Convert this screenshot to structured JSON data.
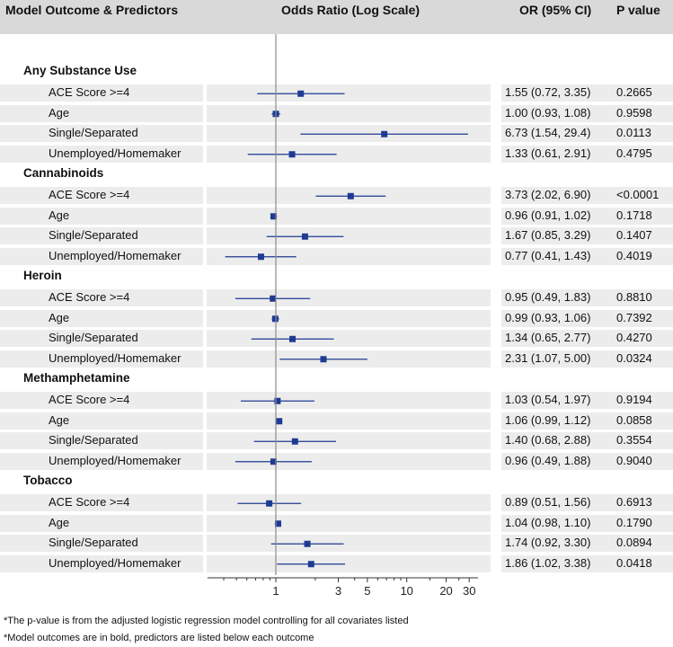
{
  "header": {
    "col1": "Model Outcome & Predictors",
    "col2": "Odds Ratio (Log Scale)",
    "col3": "OR (95% CI)",
    "col4": "P value"
  },
  "chart_data": {
    "type": "forest",
    "x_scale": "log",
    "xlim": [
      0.3,
      35
    ],
    "reference_line": 1,
    "x_ticks": [
      1,
      3,
      5,
      10,
      20,
      30
    ],
    "x_tick_labels": [
      "1",
      "3",
      "5",
      "10",
      "20",
      "30"
    ],
    "x_minor_ticks": [
      0.4,
      0.5,
      0.6,
      0.7,
      0.8,
      0.9,
      2,
      4,
      6,
      7,
      8,
      9,
      15,
      25
    ],
    "marker_color": "#1f3a93",
    "groups": [
      {
        "name": "Any Substance Use",
        "rows": [
          {
            "label": "ACE Score >=4",
            "or": 1.55,
            "lo": 0.72,
            "hi": 3.35,
            "or_text": "1.55 (0.72, 3.35)",
            "p": "0.2665"
          },
          {
            "label": "Age",
            "or": 1.0,
            "lo": 0.93,
            "hi": 1.08,
            "or_text": "1.00 (0.93, 1.08)",
            "p": "0.9598"
          },
          {
            "label": "Single/Separated",
            "or": 6.73,
            "lo": 1.54,
            "hi": 29.4,
            "or_text": "6.73 (1.54, 29.4)",
            "p": "0.0113"
          },
          {
            "label": "Unemployed/Homemaker",
            "or": 1.33,
            "lo": 0.61,
            "hi": 2.91,
            "or_text": "1.33 (0.61, 2.91)",
            "p": "0.4795"
          }
        ]
      },
      {
        "name": "Cannabinoids",
        "rows": [
          {
            "label": "ACE Score >=4",
            "or": 3.73,
            "lo": 2.02,
            "hi": 6.9,
            "or_text": "3.73 (2.02, 6.90)",
            "p": "<0.0001"
          },
          {
            "label": "Age",
            "or": 0.96,
            "lo": 0.91,
            "hi": 1.02,
            "or_text": "0.96 (0.91, 1.02)",
            "p": "0.1718"
          },
          {
            "label": "Single/Separated",
            "or": 1.67,
            "lo": 0.85,
            "hi": 3.29,
            "or_text": "1.67 (0.85, 3.29)",
            "p": "0.1407"
          },
          {
            "label": "Unemployed/Homemaker",
            "or": 0.77,
            "lo": 0.41,
            "hi": 1.43,
            "or_text": "0.77 (0.41, 1.43)",
            "p": "0.4019"
          }
        ]
      },
      {
        "name": "Heroin",
        "rows": [
          {
            "label": "ACE Score >=4",
            "or": 0.95,
            "lo": 0.49,
            "hi": 1.83,
            "or_text": "0.95 (0.49, 1.83)",
            "p": "0.8810"
          },
          {
            "label": "Age",
            "or": 0.99,
            "lo": 0.93,
            "hi": 1.06,
            "or_text": "0.99 (0.93, 1.06)",
            "p": "0.7392"
          },
          {
            "label": "Single/Separated",
            "or": 1.34,
            "lo": 0.65,
            "hi": 2.77,
            "or_text": "1.34 (0.65, 2.77)",
            "p": "0.4270"
          },
          {
            "label": "Unemployed/Homemaker",
            "or": 2.31,
            "lo": 1.07,
            "hi": 5.0,
            "or_text": "2.31 (1.07, 5.00)",
            "p": "0.0324"
          }
        ]
      },
      {
        "name": "Methamphetamine",
        "rows": [
          {
            "label": "ACE Score >=4",
            "or": 1.03,
            "lo": 0.54,
            "hi": 1.97,
            "or_text": "1.03 (0.54, 1.97)",
            "p": "0.9194"
          },
          {
            "label": "Age",
            "or": 1.06,
            "lo": 0.99,
            "hi": 1.12,
            "or_text": "1.06 (0.99, 1.12)",
            "p": "0.0858"
          },
          {
            "label": "Single/Separated",
            "or": 1.4,
            "lo": 0.68,
            "hi": 2.88,
            "or_text": "1.40 (0.68, 2.88)",
            "p": "0.3554"
          },
          {
            "label": "Unemployed/Homemaker",
            "or": 0.96,
            "lo": 0.49,
            "hi": 1.88,
            "or_text": "0.96 (0.49, 1.88)",
            "p": "0.9040"
          }
        ]
      },
      {
        "name": "Tobacco",
        "rows": [
          {
            "label": "ACE Score >=4",
            "or": 0.89,
            "lo": 0.51,
            "hi": 1.56,
            "or_text": "0.89 (0.51, 1.56)",
            "p": "0.6913"
          },
          {
            "label": "Age",
            "or": 1.04,
            "lo": 0.98,
            "hi": 1.1,
            "or_text": "1.04 (0.98, 1.10)",
            "p": "0.1790"
          },
          {
            "label": "Single/Separated",
            "or": 1.74,
            "lo": 0.92,
            "hi": 3.3,
            "or_text": "1.74 (0.92, 3.30)",
            "p": "0.0894"
          },
          {
            "label": "Unemployed/Homemaker",
            "or": 1.86,
            "lo": 1.02,
            "hi": 3.38,
            "or_text": "1.86 (1.02, 3.38)",
            "p": "0.0418"
          }
        ]
      }
    ]
  },
  "footnotes": [
    "*The p-value is from the adjusted logistic regression model controlling for all covariates listed",
    "*Model outcomes are in bold, predictors are listed below each outcome"
  ]
}
